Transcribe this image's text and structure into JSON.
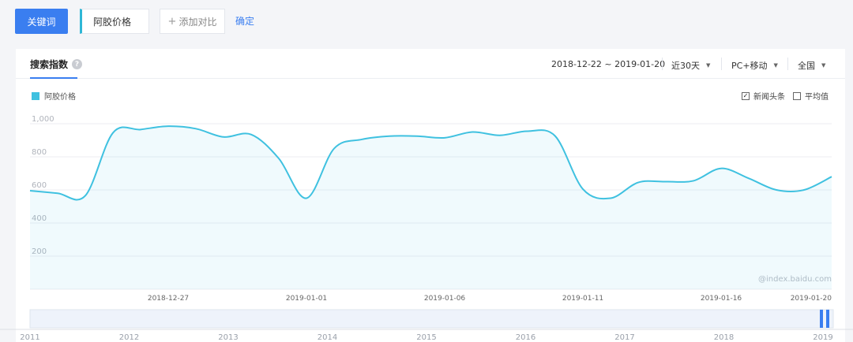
{
  "toolbar": {
    "keyword_button": "关键词",
    "keyword_value": "阿胶价格",
    "add_compare_icon": "+",
    "add_compare": "添加对比",
    "confirm": "确定"
  },
  "panel": {
    "tab_title": "搜索指数",
    "help_icon": "?",
    "date_range": "2018-12-22 ~ 2019-01-20",
    "period": "近30天",
    "device": "PC+移动",
    "region": "全国",
    "legend_label": "阿胶价格",
    "option_news": "新闻头条",
    "option_news_checked": true,
    "option_average": "平均值",
    "option_average_checked": false,
    "watermark": "@index.baidu.com",
    "accent_color": "#3a7ef0",
    "series_color": "#3fc1e0"
  },
  "chart_data": {
    "type": "area",
    "series": [
      {
        "name": "阿胶价格",
        "x": [
          "2018-12-22",
          "2018-12-23",
          "2018-12-24",
          "2018-12-25",
          "2018-12-26",
          "2018-12-27",
          "2018-12-28",
          "2018-12-29",
          "2018-12-30",
          "2018-12-31",
          "2019-01-01",
          "2019-01-02",
          "2019-01-03",
          "2019-01-04",
          "2019-01-05",
          "2019-01-06",
          "2019-01-07",
          "2019-01-08",
          "2019-01-09",
          "2019-01-10",
          "2019-01-11",
          "2019-01-12",
          "2019-01-13",
          "2019-01-14",
          "2019-01-15",
          "2019-01-16",
          "2019-01-17",
          "2019-01-18",
          "2019-01-19",
          "2019-01-20"
        ],
        "values": [
          595,
          580,
          565,
          945,
          965,
          985,
          970,
          920,
          935,
          790,
          550,
          850,
          905,
          925,
          925,
          915,
          950,
          930,
          955,
          925,
          605,
          550,
          645,
          650,
          655,
          730,
          670,
          600,
          600,
          680
        ]
      }
    ],
    "xticks": [
      "2018-12-27",
      "2019-01-01",
      "2019-01-06",
      "2019-01-11",
      "2019-01-16",
      "2019-01-20"
    ],
    "yticks": [
      "1,000",
      "800",
      "600",
      "400",
      "200"
    ],
    "ylim": [
      0,
      1000
    ],
    "grid": true,
    "navigator_years": [
      "2011",
      "2012",
      "2013",
      "2014",
      "2015",
      "2016",
      "2017",
      "2018",
      "2019"
    ]
  }
}
